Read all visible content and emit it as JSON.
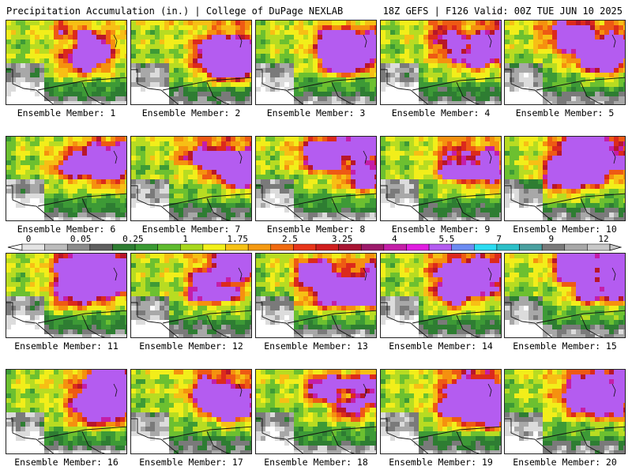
{
  "header": {
    "left": "Precipitation Accumulation (in.) | College of DuPage NEXLAB",
    "right": "18Z GEFS | F126 Valid: 00Z TUE JUN 10 2025"
  },
  "member_label_prefix": "Ensemble Member:",
  "members": [
    "1",
    "2",
    "3",
    "4",
    "5",
    "6",
    "7",
    "8",
    "9",
    "10",
    "11",
    "12",
    "13",
    "14",
    "15",
    "16",
    "17",
    "18",
    "19",
    "20"
  ],
  "colorbar": {
    "ticks": [
      "0",
      "0.05",
      "0.25",
      "1",
      "1.75",
      "2.5",
      "3.25",
      "4",
      "5.5",
      "7",
      "9",
      "12"
    ],
    "colors": [
      "#e4e4e4",
      "#bcbcbc",
      "#8c8c8c",
      "#5f5f5f",
      "#2e7d32",
      "#3a9a33",
      "#5fbb2e",
      "#a8d81e",
      "#f2f01a",
      "#f7c215",
      "#f59a12",
      "#f06a10",
      "#e8361a",
      "#d01e1e",
      "#a81432",
      "#9c1a6a",
      "#c41ea8",
      "#e01ee0",
      "#b45cf0",
      "#6c8cf2",
      "#2cdcf2",
      "#2cc0c8",
      "#4aa0a0",
      "#7a7a7a",
      "#a8a8a8",
      "#c8c8c8"
    ]
  }
}
